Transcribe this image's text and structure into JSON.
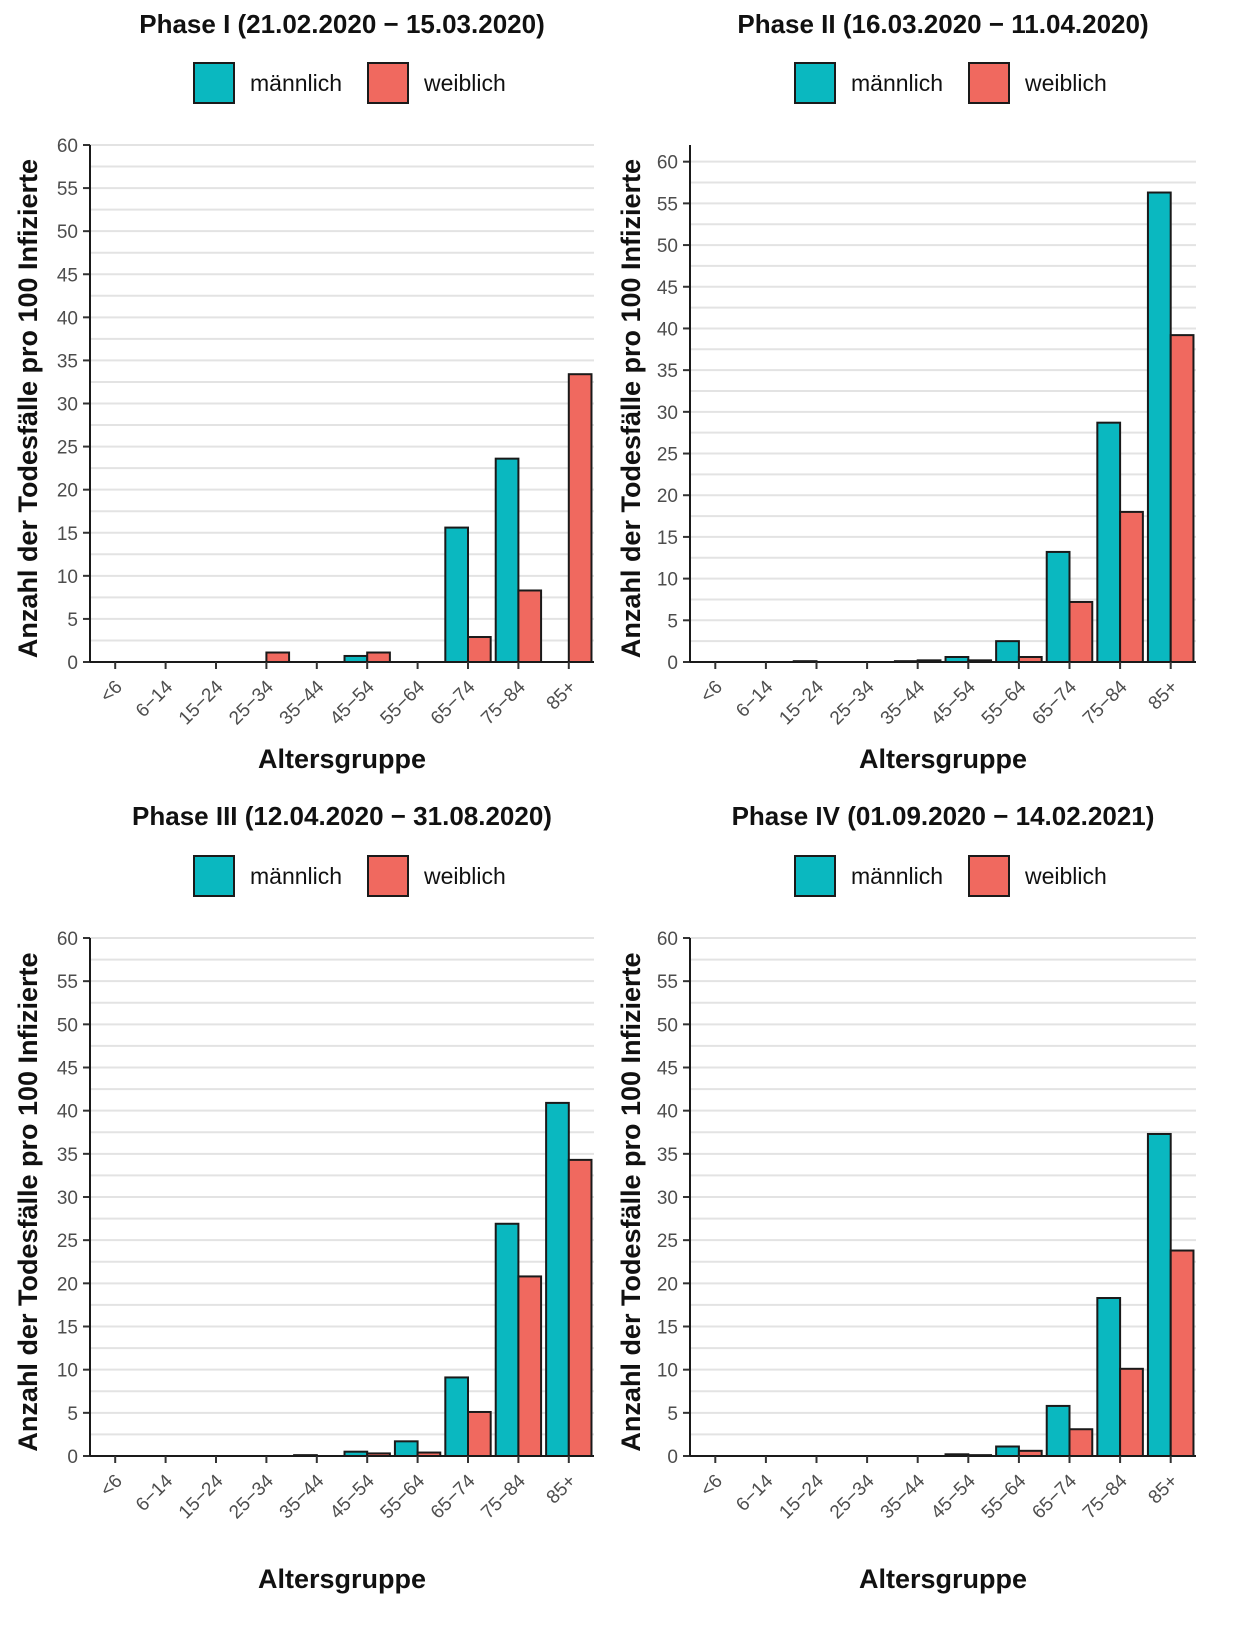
{
  "colors": {
    "maennlich": "#0ab8c0",
    "weiblich": "#f0695f"
  },
  "chart_data": [
    {
      "type": "bar",
      "title": "Phase  I (21.02.2020 − 15.03.2020)",
      "xlabel": "Altersgruppe",
      "ylabel": "Anzahl der Todesfälle pro 100 Infizierte",
      "ylim": [
        0,
        60
      ],
      "yticks": [
        "0",
        "5",
        "10",
        "15",
        "20",
        "25",
        "30",
        "35",
        "40",
        "45",
        "50",
        "55",
        "60"
      ],
      "legend_position": "top",
      "grid": true,
      "categories": [
        "<6",
        "6−14",
        "15−24",
        "25−34",
        "35−44",
        "45−54",
        "55−64",
        "65−74",
        "75−84",
        "85+"
      ],
      "series": [
        {
          "name": "männlich",
          "values": [
            0,
            0,
            0,
            0,
            0,
            0.7,
            0,
            15.6,
            23.6,
            0
          ]
        },
        {
          "name": "weiblich",
          "values": [
            0,
            0,
            0,
            1.1,
            0,
            1.1,
            0,
            2.9,
            8.3,
            33.4
          ]
        }
      ]
    },
    {
      "type": "bar",
      "title": "Phase  II (16.03.2020 − 11.04.2020)",
      "xlabel": "Altersgruppe",
      "ylabel": "Anzahl der Todesfälle pro 100 Infizierte",
      "ylim": [
        0,
        62
      ],
      "yticks": [
        "0",
        "5",
        "10",
        "15",
        "20",
        "25",
        "30",
        "35",
        "40",
        "45",
        "50",
        "55",
        "60"
      ],
      "legend_position": "top",
      "grid": true,
      "categories": [
        "<6",
        "6−14",
        "15−24",
        "25−34",
        "35−44",
        "45−54",
        "55−64",
        "65−74",
        "75−84",
        "85+"
      ],
      "series": [
        {
          "name": "männlich",
          "values": [
            0,
            0,
            0.1,
            0,
            0.1,
            0.6,
            2.5,
            13.2,
            28.7,
            56.3
          ]
        },
        {
          "name": "weiblich",
          "values": [
            0,
            0,
            0,
            0,
            0.2,
            0.2,
            0.6,
            7.2,
            18.0,
            39.2
          ]
        }
      ]
    },
    {
      "type": "bar",
      "title": "Phase  III (12.04.2020 − 31.08.2020)",
      "xlabel": "Altersgruppe",
      "ylabel": "Anzahl der Todesfälle pro 100 Infizierte",
      "ylim": [
        0,
        60
      ],
      "yticks": [
        "0",
        "5",
        "10",
        "15",
        "20",
        "25",
        "30",
        "35",
        "40",
        "45",
        "50",
        "55",
        "60"
      ],
      "legend_position": "top",
      "grid": true,
      "categories": [
        "<6",
        "6−14",
        "15−24",
        "25−34",
        "35−44",
        "45−54",
        "55−64",
        "65−74",
        "75−84",
        "85+"
      ],
      "series": [
        {
          "name": "männlich",
          "values": [
            0,
            0,
            0,
            0,
            0.1,
            0.5,
            1.7,
            9.1,
            26.9,
            40.9
          ]
        },
        {
          "name": "weiblich",
          "values": [
            0,
            0,
            0,
            0,
            0,
            0.3,
            0.4,
            5.1,
            20.8,
            34.3
          ]
        }
      ]
    },
    {
      "type": "bar",
      "title": "Phase  IV (01.09.2020 − 14.02.2021)",
      "xlabel": "Altersgruppe",
      "ylabel": "Anzahl der Todesfälle pro 100 Infizierte",
      "ylim": [
        0,
        60
      ],
      "yticks": [
        "0",
        "5",
        "10",
        "15",
        "20",
        "25",
        "30",
        "35",
        "40",
        "45",
        "50",
        "55",
        "60"
      ],
      "legend_position": "top",
      "grid": true,
      "categories": [
        "<6",
        "6−14",
        "15−24",
        "25−34",
        "35−44",
        "45−54",
        "55−64",
        "65−74",
        "75−84",
        "85+"
      ],
      "series": [
        {
          "name": "männlich",
          "values": [
            0,
            0,
            0,
            0,
            0,
            0.2,
            1.1,
            5.8,
            18.3,
            37.3
          ]
        },
        {
          "name": "weiblich",
          "values": [
            0,
            0,
            0,
            0,
            0,
            0.1,
            0.6,
            3.1,
            10.1,
            23.8
          ]
        }
      ]
    }
  ]
}
